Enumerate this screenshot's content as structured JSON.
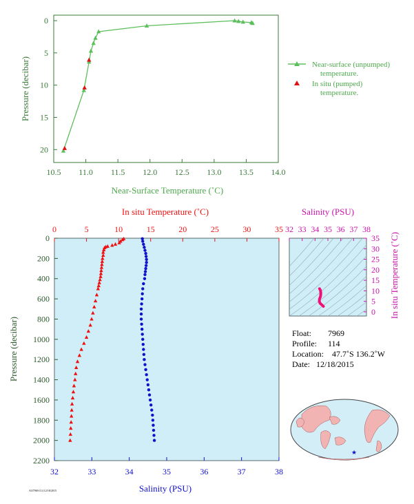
{
  "chart_data": [
    {
      "type": "line",
      "xlabel": "Near-Surface Temperature (˚C)",
      "ylabel": "Pressure (decibar)",
      "xlim": [
        10.5,
        14.0
      ],
      "ylim": [
        0,
        22
      ],
      "y_inverted": true,
      "xticks": [
        "10.5",
        "11.0",
        "11.5",
        "12.0",
        "12.5",
        "13.0",
        "13.5",
        "14.0"
      ],
      "yticks": [
        "0",
        "5",
        "10",
        "15",
        "20"
      ],
      "colors": {
        "near_surface": "#5cbf5c",
        "in_situ": "#dd1111",
        "axis_text": "#3a7a3a",
        "label_text": "#4ca84c"
      },
      "series": [
        {
          "name": "Near-surface (unpumped) temperature.",
          "points": [
            [
              13.6,
              0.4
            ],
            [
              13.58,
              0.3
            ],
            [
              13.45,
              0.2
            ],
            [
              13.38,
              0.1
            ],
            [
              13.32,
              0.0
            ],
            [
              11.95,
              0.8
            ],
            [
              11.2,
              1.7
            ],
            [
              11.15,
              2.7
            ],
            [
              11.12,
              3.5
            ],
            [
              11.08,
              4.7
            ],
            [
              11.05,
              6.4
            ],
            [
              10.97,
              10.8
            ],
            [
              10.65,
              20.2
            ]
          ]
        },
        {
          "name": "In situ (pumped) temperature.",
          "points": [
            [
              11.05,
              6.1
            ],
            [
              10.98,
              10.4
            ],
            [
              10.67,
              19.8
            ]
          ]
        }
      ],
      "legend": {
        "position": "right",
        "entries": [
          "Near-surface (unpumped) temperature.",
          "In situ (pumped) temperature."
        ]
      }
    },
    {
      "type": "scatter",
      "ylabel": "Pressure (decibar)",
      "x_top_label": "In situ Temperature (˚C)",
      "x_bottom_label": "Salinity (PSU)",
      "temp_lim": [
        0,
        35
      ],
      "sal_lim": [
        32,
        38
      ],
      "ylim": [
        0,
        2200
      ],
      "y_inverted": true,
      "temp_ticks": [
        "0",
        "5",
        "10",
        "15",
        "20",
        "25",
        "30",
        "35"
      ],
      "sal_ticks": [
        "32",
        "33",
        "34",
        "35",
        "36",
        "37",
        "38"
      ],
      "yticks": [
        "0",
        "200",
        "400",
        "600",
        "800",
        "1000",
        "1200",
        "1400",
        "1600",
        "1800",
        "2000",
        "2200"
      ],
      "colors": {
        "temperature": "#ee1111",
        "salinity": "#1111cc",
        "background": "#cfeef8",
        "ylabel": "#2d5a2d"
      },
      "temperature_profile": [
        [
          10.8,
          5
        ],
        [
          10.6,
          15
        ],
        [
          10.3,
          30
        ],
        [
          10.1,
          45
        ],
        [
          9.5,
          60
        ],
        [
          9,
          70
        ],
        [
          8.3,
          80
        ],
        [
          8,
          85
        ],
        [
          7.8,
          95
        ],
        [
          7.7,
          115
        ],
        [
          7.6,
          140
        ],
        [
          7.6,
          170
        ],
        [
          7.5,
          200
        ],
        [
          7.45,
          230
        ],
        [
          7.4,
          260
        ],
        [
          7.35,
          290
        ],
        [
          7.3,
          320
        ],
        [
          7.25,
          350
        ],
        [
          7.2,
          380
        ],
        [
          7.1,
          410
        ],
        [
          7,
          440
        ],
        [
          6.9,
          470
        ],
        [
          6.8,
          500
        ],
        [
          6.6,
          560
        ],
        [
          6.4,
          620
        ],
        [
          6.2,
          680
        ],
        [
          6.0,
          740
        ],
        [
          5.8,
          800
        ],
        [
          5.6,
          860
        ],
        [
          5.3,
          920
        ],
        [
          5.0,
          980
        ],
        [
          4.6,
          1040
        ],
        [
          4.2,
          1100
        ],
        [
          3.9,
          1160
        ],
        [
          3.6,
          1220
        ],
        [
          3.4,
          1280
        ],
        [
          3.3,
          1340
        ],
        [
          3.2,
          1400
        ],
        [
          3.05,
          1460
        ],
        [
          2.95,
          1520
        ],
        [
          2.85,
          1580
        ],
        [
          2.75,
          1640
        ],
        [
          2.7,
          1700
        ],
        [
          2.65,
          1760
        ],
        [
          2.6,
          1820
        ],
        [
          2.55,
          1880
        ],
        [
          2.5,
          1940
        ],
        [
          2.45,
          2000
        ]
      ],
      "salinity_profile": [
        [
          34.35,
          5
        ],
        [
          34.36,
          30
        ],
        [
          34.38,
          60
        ],
        [
          34.4,
          90
        ],
        [
          34.42,
          120
        ],
        [
          34.44,
          150
        ],
        [
          34.45,
          180
        ],
        [
          34.46,
          210
        ],
        [
          34.46,
          240
        ],
        [
          34.45,
          270
        ],
        [
          34.44,
          300
        ],
        [
          34.43,
          330
        ],
        [
          34.42,
          360
        ],
        [
          34.41,
          400
        ],
        [
          34.38,
          450
        ],
        [
          34.36,
          500
        ],
        [
          34.35,
          550
        ],
        [
          34.34,
          600
        ],
        [
          34.33,
          650
        ],
        [
          34.32,
          700
        ],
        [
          34.32,
          750
        ],
        [
          34.32,
          800
        ],
        [
          34.33,
          850
        ],
        [
          34.34,
          900
        ],
        [
          34.35,
          950
        ],
        [
          34.36,
          1000
        ],
        [
          34.37,
          1050
        ],
        [
          34.38,
          1100
        ],
        [
          34.39,
          1150
        ],
        [
          34.4,
          1200
        ],
        [
          34.42,
          1250
        ],
        [
          34.44,
          1300
        ],
        [
          34.46,
          1350
        ],
        [
          34.48,
          1400
        ],
        [
          34.5,
          1450
        ],
        [
          34.52,
          1500
        ],
        [
          34.54,
          1550
        ],
        [
          34.56,
          1600
        ],
        [
          34.58,
          1650
        ],
        [
          34.6,
          1700
        ],
        [
          34.62,
          1750
        ],
        [
          34.63,
          1800
        ],
        [
          34.64,
          1850
        ],
        [
          34.65,
          1900
        ],
        [
          34.66,
          1950
        ],
        [
          34.67,
          2000
        ]
      ]
    },
    {
      "type": "line",
      "title": "Salinity (PSU)",
      "ylabel": "In situ Temperature (˚C)",
      "xlim": [
        32,
        38
      ],
      "ylim": [
        -2,
        35
      ],
      "xticks": [
        "32",
        "33",
        "34",
        "35",
        "36",
        "37",
        "38"
      ],
      "yticks": [
        "0",
        "5",
        "10",
        "15",
        "20",
        "25",
        "30",
        "35"
      ],
      "colors": {
        "trace": "#ee1177",
        "label": "#cc11aa",
        "contours": "#99a8b0"
      },
      "ts_curve": [
        [
          34.35,
          11.0
        ],
        [
          34.42,
          10.2
        ],
        [
          34.45,
          9.0
        ],
        [
          34.44,
          8.0
        ],
        [
          34.42,
          7.2
        ],
        [
          34.35,
          6.2
        ],
        [
          34.33,
          5.0
        ],
        [
          34.4,
          4.0
        ],
        [
          34.55,
          3.2
        ],
        [
          34.65,
          2.6
        ]
      ]
    }
  ],
  "float_info": {
    "float_label": "Float:",
    "float_value": "7969",
    "profile_label": "Profile:",
    "profile_value": "114",
    "location_label": "Location:",
    "location_value": "47.7˚S  136.2˚W",
    "date_label": "Date:",
    "date_value": "12/18/2015"
  },
  "footer_text": "AO7969:114 12/18/2015"
}
